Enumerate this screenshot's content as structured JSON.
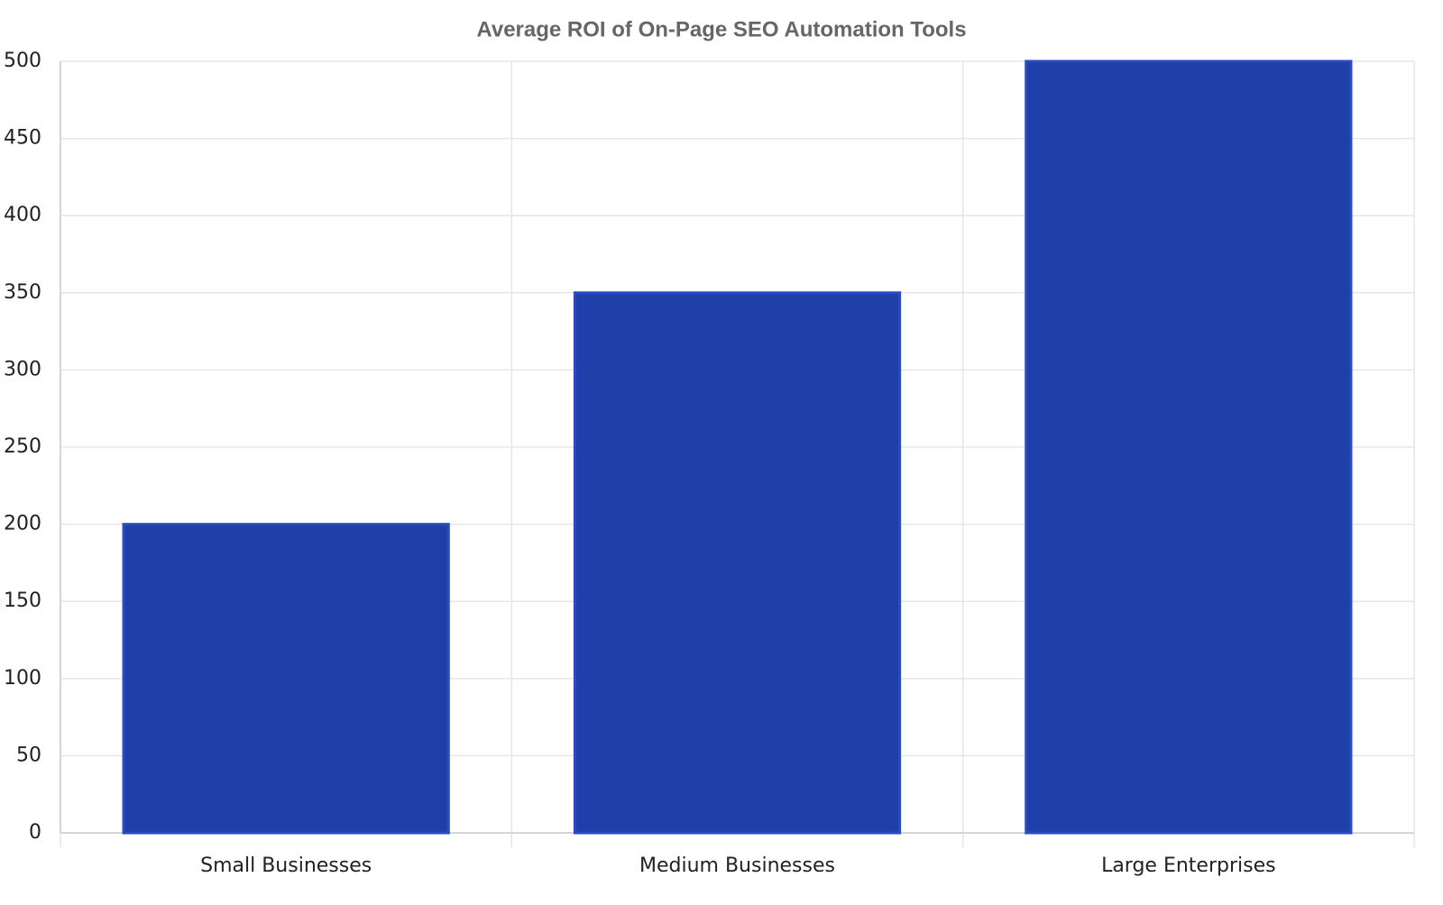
{
  "chart_data": {
    "type": "bar",
    "title": "Average ROI of On-Page SEO Automation Tools",
    "categories": [
      "Small Businesses",
      "Medium Businesses",
      "Large Enterprises"
    ],
    "values": [
      200,
      350,
      500
    ],
    "color": "#1f3fa9",
    "ylim": [
      0,
      500
    ],
    "yticks": [
      0,
      50,
      100,
      150,
      200,
      250,
      300,
      350,
      400,
      450,
      500
    ],
    "grid": true
  }
}
